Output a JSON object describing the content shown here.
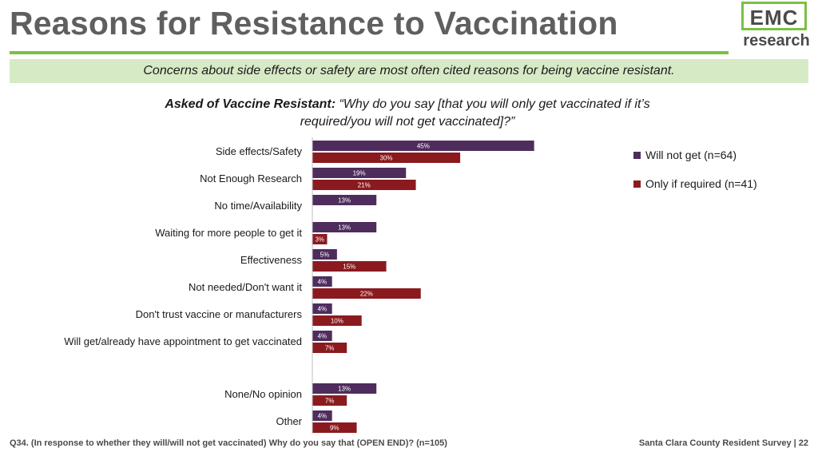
{
  "header": {
    "title": "Reasons for Resistance to Vaccination",
    "logo_top": "EMC",
    "logo_bottom": "research"
  },
  "banner": {
    "text": "Concerns about side effects or safety are most often cited reasons for being vaccine resistant."
  },
  "question": {
    "lead": "Asked of Vaccine Resistant:",
    "text": "“Why do you say [that you will only get vaccinated if it’s required/you will not get vaccinated]?”"
  },
  "footer": {
    "note": "Q34. (In response to whether they will/will not get vaccinated) Why do you say that (OPEN END)? (n=105)",
    "source": "Santa Clara County Resident Survey | 22"
  },
  "chart_data": {
    "type": "bar",
    "orientation": "horizontal",
    "categories": [
      "Side effects/Safety",
      "Not Enough Research",
      "No time/Availability",
      "Waiting for more people to get it",
      "Effectiveness",
      "Not needed/Don't want it",
      "Don't trust vaccine or manufacturers",
      "Will get/already have appointment to get vaccinated",
      "None/No opinion",
      "Other"
    ],
    "series": [
      {
        "name": "Will not get (n=64)",
        "color": "#4e2d5c",
        "values": [
          45,
          19,
          13,
          13,
          5,
          4,
          4,
          4,
          13,
          4
        ],
        "labels": [
          "45%",
          "19%",
          "13%",
          "13%",
          "5%",
          "4%",
          "4%",
          "4%",
          "13%",
          "4%"
        ]
      },
      {
        "name": "Only if required (n=41)",
        "color": "#8b1a1f",
        "values": [
          30,
          21,
          null,
          3,
          15,
          22,
          10,
          7,
          7,
          9
        ],
        "labels": [
          "30%",
          "21%",
          null,
          "3%",
          "15%",
          "22%",
          "10%",
          "7%",
          "7%",
          "9%"
        ]
      }
    ],
    "legend_position": "right",
    "xlim": [
      0,
      100
    ],
    "grid": false
  }
}
